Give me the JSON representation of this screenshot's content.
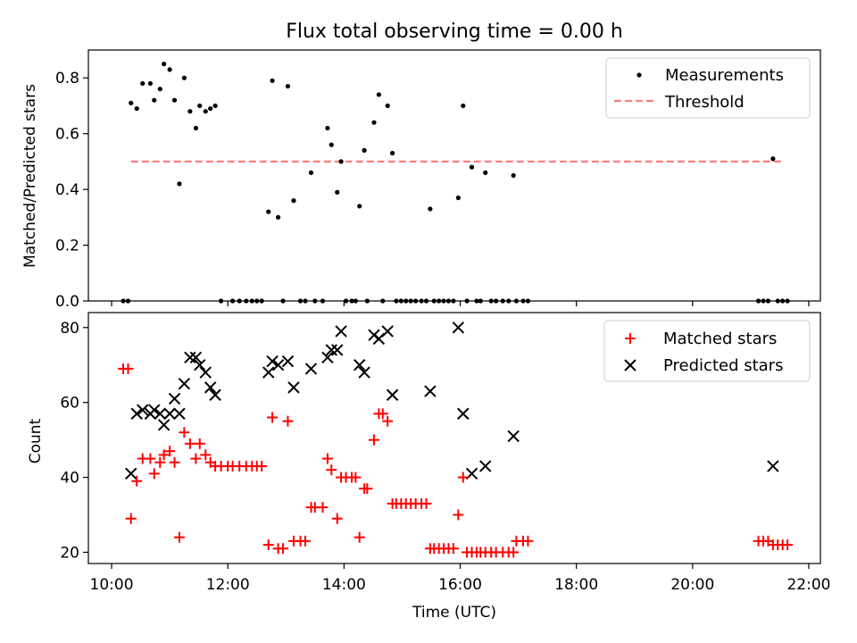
{
  "chart_data": [
    {
      "type": "scatter",
      "title": "Flux total observing time = 0.00 h",
      "ylabel": "Matched/Predicted stars",
      "xlim": [
        "09:36",
        "22:12"
      ],
      "ylim": [
        0,
        0.9
      ],
      "yticks": [
        "0.0",
        "0.2",
        "0.4",
        "0.6",
        "0.8"
      ],
      "legend": {
        "placement": "top-right",
        "entries": [
          "Measurements",
          "Threshold"
        ]
      },
      "grid": false,
      "series": [
        {
          "name": "Measurements",
          "marker": "dot",
          "color": "#000000",
          "points": [
            [
              "10:12",
              0
            ],
            [
              "10:17",
              0
            ],
            [
              "10:20",
              0.71
            ],
            [
              "10:26",
              0.69
            ],
            [
              "10:32",
              0.78
            ],
            [
              "10:40",
              0.78
            ],
            [
              "10:44",
              0.72
            ],
            [
              "10:50",
              0.76
            ],
            [
              "10:54",
              0.85
            ],
            [
              "11:00",
              0.83
            ],
            [
              "11:05",
              0.72
            ],
            [
              "11:10",
              0.42
            ],
            [
              "11:15",
              0.8
            ],
            [
              "11:21",
              0.68
            ],
            [
              "11:27",
              0.62
            ],
            [
              "11:31",
              0.7
            ],
            [
              "11:37",
              0.68
            ],
            [
              "11:42",
              0.69
            ],
            [
              "11:47",
              0.7
            ],
            [
              "11:53",
              0
            ],
            [
              "12:05",
              0
            ],
            [
              "12:12",
              0
            ],
            [
              "12:19",
              0
            ],
            [
              "12:25",
              0
            ],
            [
              "12:30",
              0
            ],
            [
              "12:35",
              0
            ],
            [
              "12:42",
              0.32
            ],
            [
              "12:46",
              0.79
            ],
            [
              "12:52",
              0.3
            ],
            [
              "12:57",
              0
            ],
            [
              "13:02",
              0.77
            ],
            [
              "13:08",
              0.36
            ],
            [
              "13:15",
              0
            ],
            [
              "13:20",
              0
            ],
            [
              "13:26",
              0.46
            ],
            [
              "13:30",
              0
            ],
            [
              "13:38",
              0
            ],
            [
              "13:43",
              0.62
            ],
            [
              "13:47",
              0.56
            ],
            [
              "13:53",
              0.39
            ],
            [
              "13:57",
              0.5
            ],
            [
              "14:02",
              0
            ],
            [
              "14:08",
              0
            ],
            [
              "14:12",
              0
            ],
            [
              "14:16",
              0.34
            ],
            [
              "14:21",
              0.54
            ],
            [
              "14:24",
              0
            ],
            [
              "14:31",
              0.64
            ],
            [
              "14:36",
              0.74
            ],
            [
              "14:40",
              0
            ],
            [
              "14:45",
              0.7
            ],
            [
              "14:50",
              0.53
            ],
            [
              "14:54",
              0
            ],
            [
              "14:59",
              0
            ],
            [
              "15:04",
              0
            ],
            [
              "15:09",
              0
            ],
            [
              "15:14",
              0
            ],
            [
              "15:20",
              0
            ],
            [
              "15:25",
              0
            ],
            [
              "15:29",
              0.33
            ],
            [
              "15:33",
              0
            ],
            [
              "15:38",
              0
            ],
            [
              "15:43",
              0
            ],
            [
              "15:48",
              0
            ],
            [
              "15:53",
              0
            ],
            [
              "15:58",
              0.37
            ],
            [
              "16:03",
              0.7
            ],
            [
              "16:07",
              0
            ],
            [
              "16:12",
              0.48
            ],
            [
              "16:17",
              0
            ],
            [
              "16:21",
              0
            ],
            [
              "16:26",
              0.46
            ],
            [
              "16:32",
              0
            ],
            [
              "16:37",
              0
            ],
            [
              "16:44",
              0
            ],
            [
              "16:50",
              0
            ],
            [
              "16:55",
              0.45
            ],
            [
              "16:58",
              0
            ],
            [
              "17:05",
              0
            ],
            [
              "17:10",
              0
            ],
            [
              "21:08",
              0
            ],
            [
              "21:13",
              0
            ],
            [
              "21:18",
              0
            ],
            [
              "21:23",
              0.51
            ],
            [
              "21:28",
              0
            ],
            [
              "21:33",
              0
            ],
            [
              "21:38",
              0
            ]
          ]
        },
        {
          "name": "Threshold",
          "style": "dashed",
          "color": "#ff7f7f",
          "points": [
            [
              "10:20",
              0.5
            ],
            [
              "21:35",
              0.5
            ]
          ]
        }
      ]
    },
    {
      "type": "scatter",
      "xlabel": "Time (UTC)",
      "ylabel": "Count",
      "xlim": [
        "09:36",
        "22:12"
      ],
      "ylim": [
        17,
        84
      ],
      "xticks": [
        "10:00",
        "12:00",
        "14:00",
        "16:00",
        "18:00",
        "20:00",
        "22:00"
      ],
      "yticks": [
        "20",
        "40",
        "60",
        "80"
      ],
      "legend": {
        "placement": "top-right",
        "entries": [
          "Matched stars",
          "Predicted stars"
        ]
      },
      "grid": false,
      "series": [
        {
          "name": "Matched stars",
          "marker": "plus",
          "color": "#ff0000",
          "points": [
            [
              "10:12",
              69
            ],
            [
              "10:17",
              69
            ],
            [
              "10:20",
              29
            ],
            [
              "10:26",
              39
            ],
            [
              "10:32",
              45
            ],
            [
              "10:40",
              45
            ],
            [
              "10:44",
              41
            ],
            [
              "10:50",
              44
            ],
            [
              "10:54",
              46
            ],
            [
              "11:00",
              47
            ],
            [
              "11:05",
              44
            ],
            [
              "11:10",
              24
            ],
            [
              "11:15",
              52
            ],
            [
              "11:21",
              49
            ],
            [
              "11:27",
              45
            ],
            [
              "11:31",
              49
            ],
            [
              "11:37",
              46
            ],
            [
              "11:42",
              44
            ],
            [
              "11:47",
              43
            ],
            [
              "11:53",
              43
            ],
            [
              "12:00",
              43
            ],
            [
              "12:05",
              43
            ],
            [
              "12:12",
              43
            ],
            [
              "12:19",
              43
            ],
            [
              "12:25",
              43
            ],
            [
              "12:30",
              43
            ],
            [
              "12:35",
              43
            ],
            [
              "12:42",
              22
            ],
            [
              "12:46",
              56
            ],
            [
              "12:52",
              21
            ],
            [
              "12:57",
              21
            ],
            [
              "13:02",
              55
            ],
            [
              "13:08",
              23
            ],
            [
              "13:15",
              23
            ],
            [
              "13:20",
              23
            ],
            [
              "13:26",
              32
            ],
            [
              "13:30",
              32
            ],
            [
              "13:38",
              32
            ],
            [
              "13:43",
              45
            ],
            [
              "13:47",
              42
            ],
            [
              "13:53",
              29
            ],
            [
              "13:57",
              40
            ],
            [
              "14:02",
              40
            ],
            [
              "14:08",
              40
            ],
            [
              "14:12",
              40
            ],
            [
              "14:16",
              24
            ],
            [
              "14:21",
              37
            ],
            [
              "14:24",
              37
            ],
            [
              "14:31",
              50
            ],
            [
              "14:36",
              57
            ],
            [
              "14:40",
              57
            ],
            [
              "14:45",
              55
            ],
            [
              "14:50",
              33
            ],
            [
              "14:54",
              33
            ],
            [
              "14:59",
              33
            ],
            [
              "15:04",
              33
            ],
            [
              "15:09",
              33
            ],
            [
              "15:14",
              33
            ],
            [
              "15:20",
              33
            ],
            [
              "15:25",
              33
            ],
            [
              "15:29",
              21
            ],
            [
              "15:33",
              21
            ],
            [
              "15:38",
              21
            ],
            [
              "15:43",
              21
            ],
            [
              "15:48",
              21
            ],
            [
              "15:53",
              21
            ],
            [
              "15:58",
              30
            ],
            [
              "16:03",
              40
            ],
            [
              "16:07",
              20
            ],
            [
              "16:12",
              20
            ],
            [
              "16:17",
              20
            ],
            [
              "16:21",
              20
            ],
            [
              "16:26",
              20
            ],
            [
              "16:32",
              20
            ],
            [
              "16:37",
              20
            ],
            [
              "16:44",
              20
            ],
            [
              "16:50",
              20
            ],
            [
              "16:55",
              20
            ],
            [
              "16:58",
              23
            ],
            [
              "17:05",
              23
            ],
            [
              "17:10",
              23
            ],
            [
              "21:08",
              23
            ],
            [
              "21:13",
              23
            ],
            [
              "21:18",
              23
            ],
            [
              "21:23",
              22
            ],
            [
              "21:28",
              22
            ],
            [
              "21:33",
              22
            ],
            [
              "21:38",
              22
            ]
          ]
        },
        {
          "name": "Predicted stars",
          "marker": "x",
          "color": "#000000",
          "points": [
            [
              "10:20",
              41
            ],
            [
              "10:26",
              57
            ],
            [
              "10:32",
              58
            ],
            [
              "10:40",
              57
            ],
            [
              "10:44",
              58
            ],
            [
              "10:50",
              57
            ],
            [
              "10:54",
              54
            ],
            [
              "11:00",
              57
            ],
            [
              "11:05",
              61
            ],
            [
              "11:10",
              57
            ],
            [
              "11:15",
              65
            ],
            [
              "11:21",
              72
            ],
            [
              "11:27",
              72
            ],
            [
              "11:31",
              70
            ],
            [
              "11:37",
              68
            ],
            [
              "11:42",
              64
            ],
            [
              "11:47",
              62
            ],
            [
              "12:42",
              68
            ],
            [
              "12:46",
              71
            ],
            [
              "12:52",
              70
            ],
            [
              "13:02",
              71
            ],
            [
              "13:08",
              64
            ],
            [
              "13:26",
              69
            ],
            [
              "13:43",
              72
            ],
            [
              "13:47",
              74
            ],
            [
              "13:53",
              74
            ],
            [
              "13:57",
              79
            ],
            [
              "14:16",
              70
            ],
            [
              "14:21",
              68
            ],
            [
              "14:31",
              78
            ],
            [
              "14:36",
              77
            ],
            [
              "14:45",
              79
            ],
            [
              "14:50",
              62
            ],
            [
              "15:29",
              63
            ],
            [
              "15:58",
              80
            ],
            [
              "16:03",
              57
            ],
            [
              "16:12",
              41
            ],
            [
              "16:26",
              43
            ],
            [
              "16:55",
              51
            ],
            [
              "21:23",
              43
            ]
          ]
        }
      ]
    }
  ]
}
